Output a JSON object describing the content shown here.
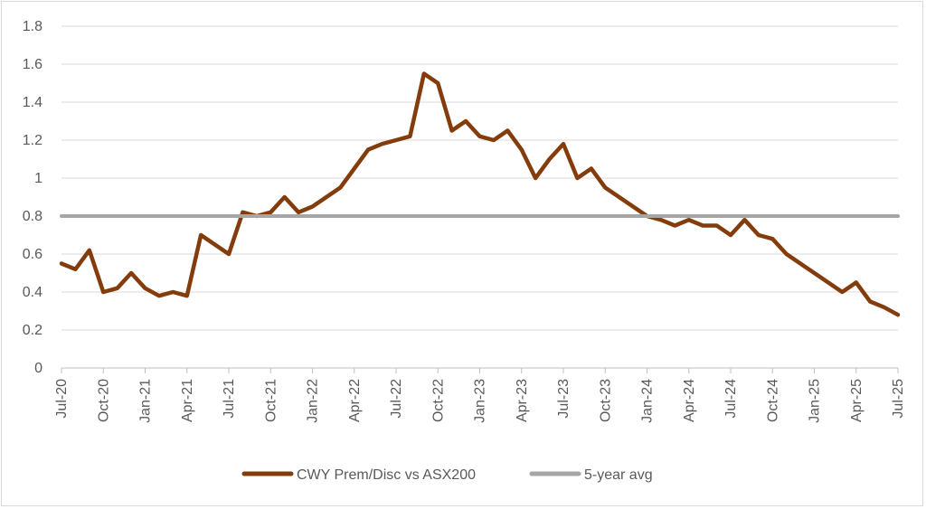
{
  "chart_data": {
    "type": "line",
    "title": "",
    "xlabel": "",
    "ylabel": "",
    "ylim": [
      0,
      1.8
    ],
    "y_ticks": [
      "0",
      "0.2",
      "0.4",
      "0.6",
      "0.8",
      "1",
      "1.2",
      "1.4",
      "1.6",
      "1.8"
    ],
    "x_ticks": [
      "Jul-20",
      "Oct-20",
      "Jan-21",
      "Apr-21",
      "Jul-21",
      "Oct-21",
      "Jan-22",
      "Apr-22",
      "Jul-22",
      "Oct-22",
      "Jan-23",
      "Apr-23",
      "Jul-23",
      "Oct-23",
      "Jan-24",
      "Apr-24",
      "Jul-24",
      "Oct-24",
      "Jan-25",
      "Apr-25",
      "Jul-25"
    ],
    "grid": "horizontal",
    "legend_position": "bottom",
    "colors": {
      "series1": "#843C0C",
      "series2": "#A6A6A6",
      "grid": "#d9d9d9",
      "axis": "#bfbfbf",
      "text": "#595959"
    },
    "series": [
      {
        "name": "CWY Prem/Disc vs ASX200",
        "x": [
          "Jul-20",
          "Aug-20",
          "Sep-20",
          "Oct-20",
          "Nov-20",
          "Dec-20",
          "Jan-21",
          "Feb-21",
          "Mar-21",
          "Apr-21",
          "May-21",
          "Jun-21",
          "Jul-21",
          "Aug-21",
          "Sep-21",
          "Oct-21",
          "Nov-21",
          "Dec-21",
          "Jan-22",
          "Feb-22",
          "Mar-22",
          "Apr-22",
          "May-22",
          "Jun-22",
          "Jul-22",
          "Aug-22",
          "Sep-22",
          "Oct-22",
          "Nov-22",
          "Dec-22",
          "Jan-23",
          "Feb-23",
          "Mar-23",
          "Apr-23",
          "May-23",
          "Jun-23",
          "Jul-23",
          "Aug-23",
          "Sep-23",
          "Oct-23",
          "Nov-23",
          "Dec-23",
          "Jan-24",
          "Feb-24",
          "Mar-24",
          "Apr-24",
          "May-24",
          "Jun-24",
          "Jul-24",
          "Aug-24",
          "Sep-24",
          "Oct-24",
          "Nov-24",
          "Dec-24",
          "Jan-25",
          "Feb-25",
          "Mar-25",
          "Apr-25",
          "May-25",
          "Jun-25",
          "Jul-25"
        ],
        "values": [
          0.55,
          0.52,
          0.62,
          0.4,
          0.42,
          0.5,
          0.42,
          0.38,
          0.4,
          0.38,
          0.7,
          0.65,
          0.6,
          0.82,
          0.8,
          0.82,
          0.9,
          0.82,
          0.85,
          0.9,
          0.95,
          1.05,
          1.15,
          1.18,
          1.2,
          1.22,
          1.55,
          1.5,
          1.25,
          1.3,
          1.22,
          1.2,
          1.25,
          1.15,
          1.0,
          1.1,
          1.18,
          1.0,
          1.05,
          0.95,
          0.9,
          0.85,
          0.8,
          0.78,
          0.75,
          0.78,
          0.75,
          0.75,
          0.7,
          0.78,
          0.7,
          0.68,
          0.6,
          0.55,
          0.5,
          0.45,
          0.4,
          0.45,
          0.35,
          0.32,
          0.28
        ]
      },
      {
        "name": "5-year avg",
        "x": [
          "Jul-20",
          "Jul-25"
        ],
        "values": [
          0.8,
          0.8
        ]
      }
    ]
  }
}
